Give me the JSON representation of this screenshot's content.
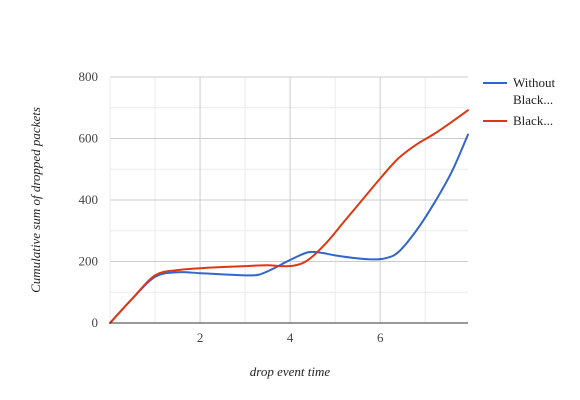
{
  "chart_data": {
    "type": "line",
    "title": "",
    "xlabel": "drop event time",
    "ylabel": "Cumulative sum of dropped packets",
    "xlim": [
      0,
      7.95
    ],
    "ylim": [
      0,
      800
    ],
    "x_ticks": [
      2,
      4,
      6
    ],
    "x_tick_labels": [
      "2",
      "4",
      "6"
    ],
    "y_ticks": [
      0,
      200,
      400,
      600,
      800
    ],
    "y_tick_labels": [
      "0",
      "200",
      "400",
      "600",
      "800"
    ],
    "grid": true,
    "legend_position": "right",
    "series": [
      {
        "name": "Without Black...",
        "legend_lines": [
          "Without",
          "Black..."
        ],
        "color": "#3366cc",
        "x": [
          0,
          0.5,
          1.0,
          1.5,
          2.0,
          2.5,
          3.0,
          3.3,
          3.6,
          4.0,
          4.4,
          4.7,
          5.0,
          5.5,
          5.8,
          6.1,
          6.4,
          6.8,
          7.2,
          7.6,
          7.95
        ],
        "y": [
          0,
          80,
          150,
          165,
          162,
          158,
          155,
          157,
          175,
          205,
          230,
          228,
          220,
          210,
          207,
          210,
          230,
          300,
          390,
          495,
          613
        ]
      },
      {
        "name": "Black...",
        "legend_lines": [
          "Black..."
        ],
        "color": "#dc3912",
        "x": [
          0,
          0.5,
          1.0,
          1.5,
          2.0,
          2.5,
          3.0,
          3.5,
          3.8,
          4.1,
          4.4,
          4.8,
          5.2,
          5.6,
          6.0,
          6.4,
          6.8,
          7.2,
          7.6,
          7.95
        ],
        "y": [
          0,
          80,
          155,
          172,
          178,
          182,
          185,
          188,
          185,
          187,
          205,
          260,
          330,
          400,
          470,
          535,
          580,
          615,
          655,
          692
        ]
      }
    ]
  }
}
